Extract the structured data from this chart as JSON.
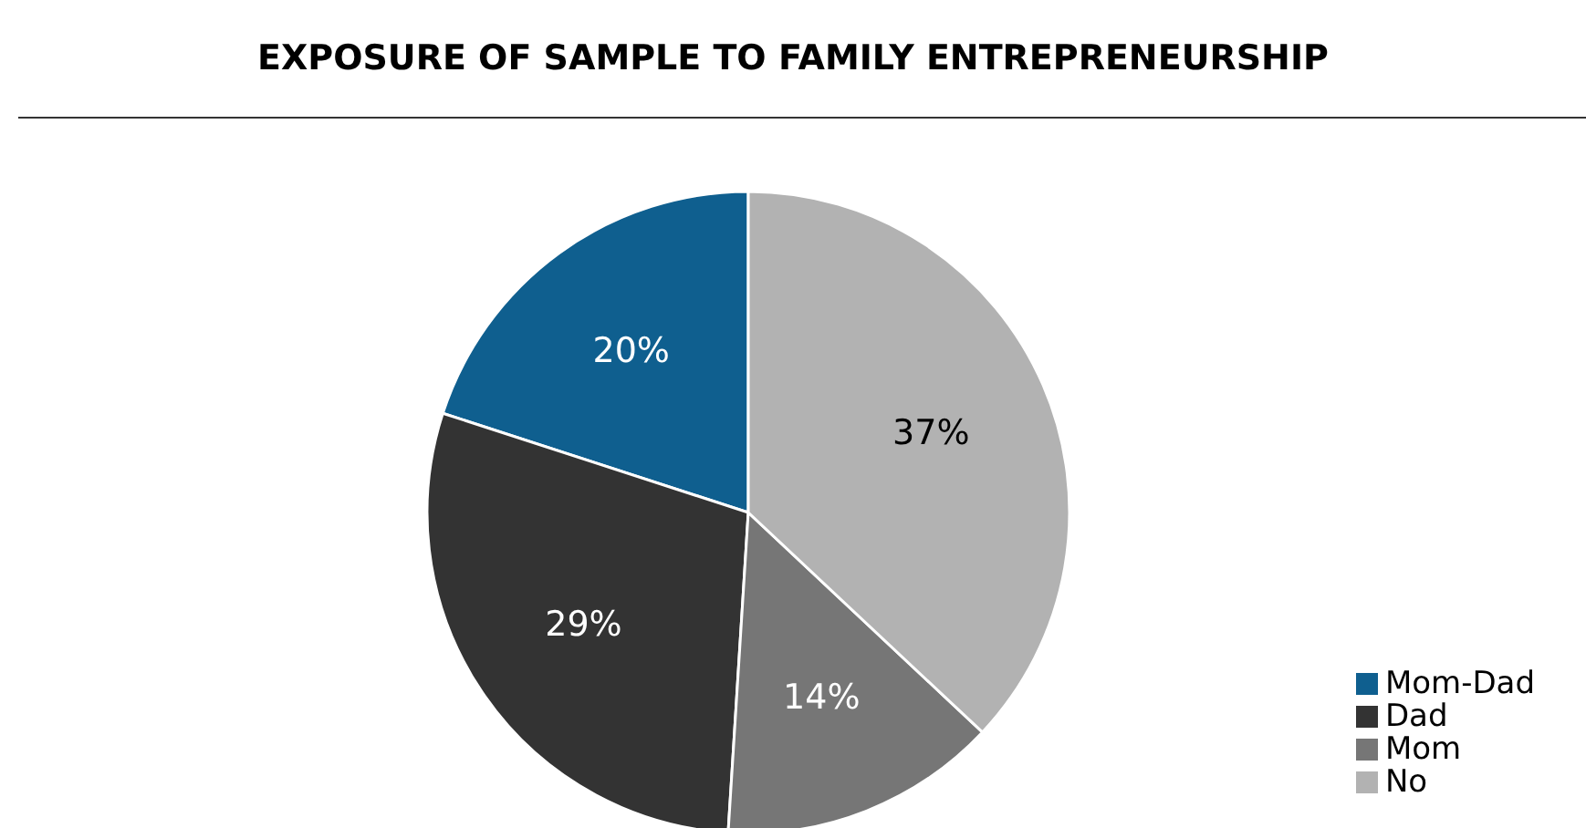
{
  "chart_data": {
    "type": "pie",
    "title": "EXPOSURE OF SAMPLE TO FAMILY ENTREPRENEURSHIP",
    "categories": [
      "Mom-Dad",
      "Dad",
      "Mom",
      "No"
    ],
    "values": [
      20,
      29,
      14,
      37
    ],
    "colors": [
      "#0f5f8f",
      "#333333",
      "#767676",
      "#b2b2b2"
    ],
    "value_labels": [
      "20%",
      "29%",
      "14%",
      "37%"
    ],
    "legend": "bottom right"
  }
}
